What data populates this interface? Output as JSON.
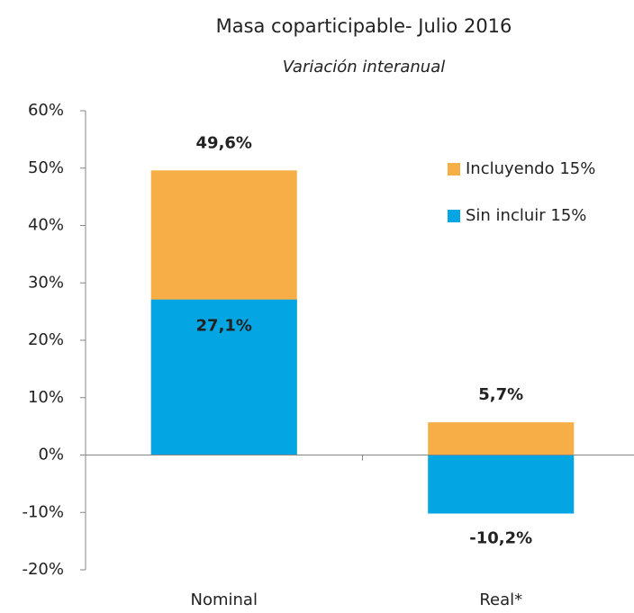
{
  "chart_data": {
    "type": "bar",
    "title": "Masa coparticipable- Julio 2016",
    "subtitle": "Variación interanual",
    "categories": [
      "Nominal",
      "Real*"
    ],
    "series": [
      {
        "name": "Incluyendo 15%",
        "color": "#f8ae47",
        "values": [
          49.6,
          5.7
        ],
        "value_labels": [
          "49,6%",
          "5,7%"
        ]
      },
      {
        "name": "Sin incluir 15%",
        "color": "#03a6e2",
        "values": [
          27.1,
          -10.2
        ],
        "value_labels": [
          "27,1%",
          "-10,2%"
        ]
      }
    ],
    "ylim": [
      -20,
      60
    ],
    "yticks": [
      {
        "value": -20,
        "label": "-20%"
      },
      {
        "value": -10,
        "label": "-10%"
      },
      {
        "value": 0,
        "label": "0%"
      },
      {
        "value": 10,
        "label": "10%"
      },
      {
        "value": 20,
        "label": "20%"
      },
      {
        "value": 30,
        "label": "30%"
      },
      {
        "value": 40,
        "label": "40%"
      },
      {
        "value": 50,
        "label": "50%"
      },
      {
        "value": 60,
        "label": "60%"
      }
    ],
    "grid": false,
    "legend": "upper right",
    "overlap": true
  }
}
